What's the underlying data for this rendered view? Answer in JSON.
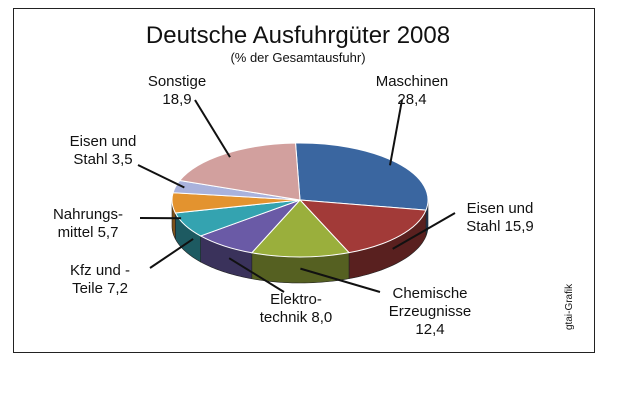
{
  "chart_data": {
    "type": "pie",
    "title": "Deutsche Ausfuhrgüter 2008",
    "subtitle": "(% der Gesamtausfuhr)",
    "credit": "gtai-Grafik",
    "slices": [
      {
        "label_lines": [
          "Maschinen",
          "28,4"
        ],
        "value": 28.4,
        "color": "#3a66a0"
      },
      {
        "label_lines": [
          "Eisen und",
          "Stahl 15,9"
        ],
        "value": 15.9,
        "color": "#a23a38"
      },
      {
        "label_lines": [
          "Chemische",
          "Erzeugnisse",
          "12,4"
        ],
        "value": 12.4,
        "color": "#9aaf3c"
      },
      {
        "label_lines": [
          "Elektro-",
          "technik 8,0"
        ],
        "value": 8.0,
        "color": "#6a5aa6"
      },
      {
        "label_lines": [
          "Kfz und -",
          "Teile 7,2"
        ],
        "value": 7.2,
        "color": "#34a3b0"
      },
      {
        "label_lines": [
          "Nahrungs-",
          "mittel 5,7"
        ],
        "value": 5.7,
        "color": "#e3932f"
      },
      {
        "label_lines": [
          "Eisen und",
          "Stahl 3,5"
        ],
        "value": 3.5,
        "color": "#a9b2dc"
      },
      {
        "label_lines": [
          "Sonstige",
          "18,9"
        ],
        "value": 18.9,
        "color": "#d2a09e"
      }
    ]
  }
}
